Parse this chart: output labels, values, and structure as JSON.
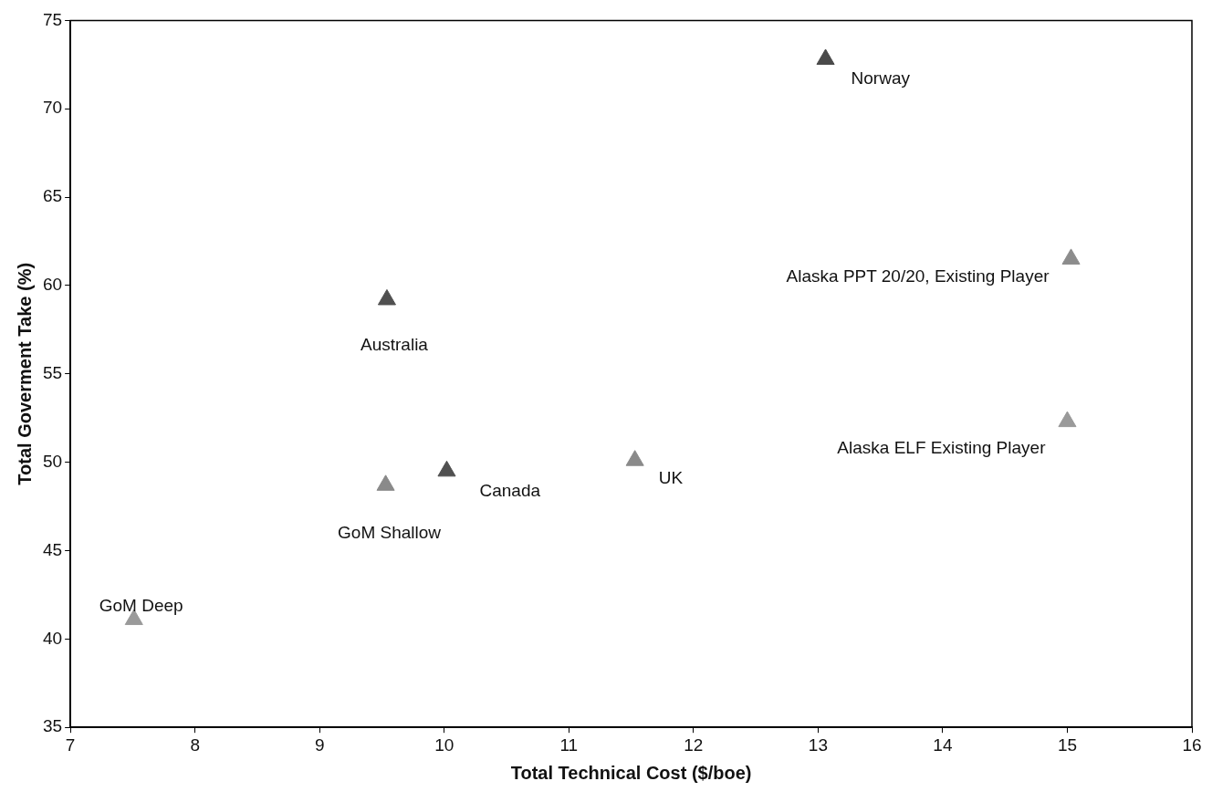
{
  "chart_data": {
    "type": "scatter",
    "xlabel": "Total Technical Cost ($/boe)",
    "ylabel": "Total Goverment Take (%)",
    "x": [
      13.06,
      15.03,
      15.0,
      9.54,
      10.02,
      11.53,
      9.53,
      7.51
    ],
    "values": [
      72.8,
      61.5,
      52.3,
      59.2,
      49.5,
      50.1,
      48.7,
      41.1
    ],
    "colors": [
      "#4a4a4a",
      "#8c8c8c",
      "#9a9a9a",
      "#505050",
      "#505050",
      "#8a8a8a",
      "#8a8a8a",
      "#9a9a9a"
    ],
    "marker": "triangle",
    "xlim": [
      7,
      16
    ],
    "xticks": [
      7,
      8,
      9,
      10,
      11,
      12,
      13,
      14,
      15,
      16
    ],
    "ylim": [
      35,
      75
    ],
    "yticks": [
      35,
      40,
      45,
      50,
      55,
      60,
      65,
      70,
      75
    ],
    "grid": false,
    "legend": false,
    "annotations": [
      {
        "text": "Norway",
        "x": 13.06,
        "y": 72.8
      },
      {
        "text": "Alaska PPT 20/20, Existing Player",
        "x": 15.03,
        "y": 61.5
      },
      {
        "text": "Alaska ELF Existing Player",
        "x": 15.0,
        "y": 52.3
      },
      {
        "text": "Australia",
        "x": 9.54,
        "y": 59.2
      },
      {
        "text": "Canada",
        "x": 10.02,
        "y": 49.5
      },
      {
        "text": "UK",
        "x": 11.53,
        "y": 50.1
      },
      {
        "text": "GoM Shallow",
        "x": 9.53,
        "y": 48.7
      },
      {
        "text": "GoM Deep",
        "x": 7.51,
        "y": 41.1
      }
    ]
  }
}
